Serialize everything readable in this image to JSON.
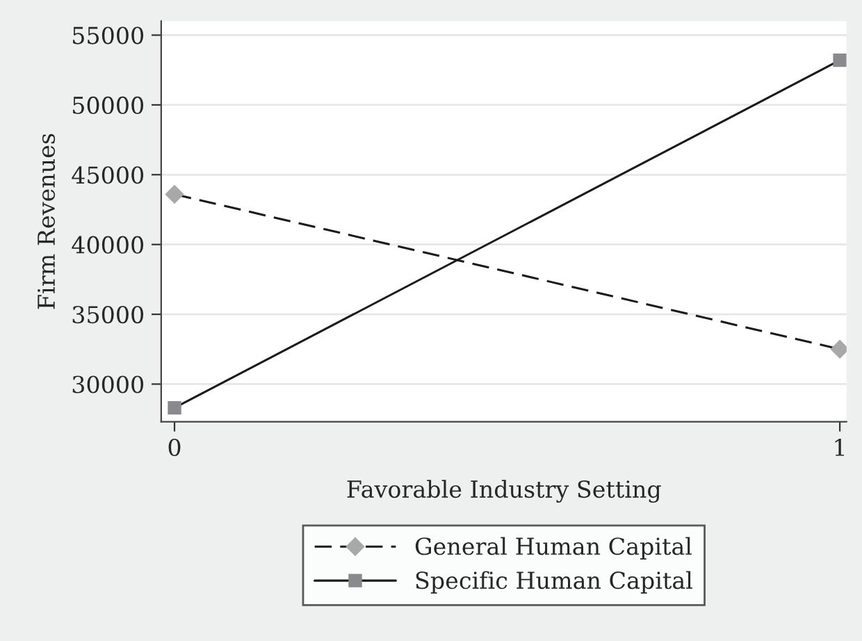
{
  "chart_data": {
    "type": "line",
    "xlabel": "Favorable Industry Setting",
    "ylabel": "Firm Revenues",
    "x": [
      0,
      1
    ],
    "series": [
      {
        "name": "General Human Capital",
        "color": "#1a1a1a",
        "marker": "diamond",
        "line_style": "dashed",
        "values": [
          43600,
          32500
        ]
      },
      {
        "name": "Specific Human Capital",
        "color": "#1a1a1a",
        "marker": "square",
        "line_style": "solid",
        "values": [
          28300,
          53200
        ]
      }
    ],
    "xlim": [
      -0.02,
      1.01
    ],
    "xticks": [
      0,
      1
    ],
    "ylim": [
      27300,
      56000
    ],
    "yticks": [
      30000,
      35000,
      40000,
      45000,
      50000,
      55000
    ],
    "grid": "y",
    "legend": "bottom"
  }
}
